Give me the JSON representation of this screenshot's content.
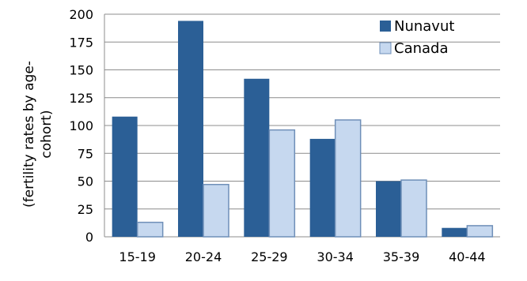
{
  "chart_data": {
    "type": "bar",
    "title": "",
    "xlabel": "",
    "ylabel": "(fertility rates by age-cohort)",
    "ylabel_lines": [
      "(fertility rates by age-",
      "cohort)"
    ],
    "categories": [
      "15-19",
      "20-24",
      "25-29",
      "30-34",
      "35-39",
      "40-44"
    ],
    "series": [
      {
        "name": "Nunavut",
        "values": [
          108,
          194,
          142,
          88,
          50,
          8
        ]
      },
      {
        "name": "Canada",
        "values": [
          13,
          47,
          96,
          105,
          51,
          10
        ]
      }
    ],
    "ylim": [
      0,
      200
    ],
    "yticks": [
      0,
      25,
      50,
      75,
      100,
      125,
      150,
      175,
      200
    ],
    "grid": true,
    "legend_position": "top-right",
    "colors": {
      "Nunavut": "#2B5F96",
      "Canada": "#C6D8EF",
      "Canada_stroke": "#6F8FB8",
      "grid": "#8C8C8C"
    }
  }
}
